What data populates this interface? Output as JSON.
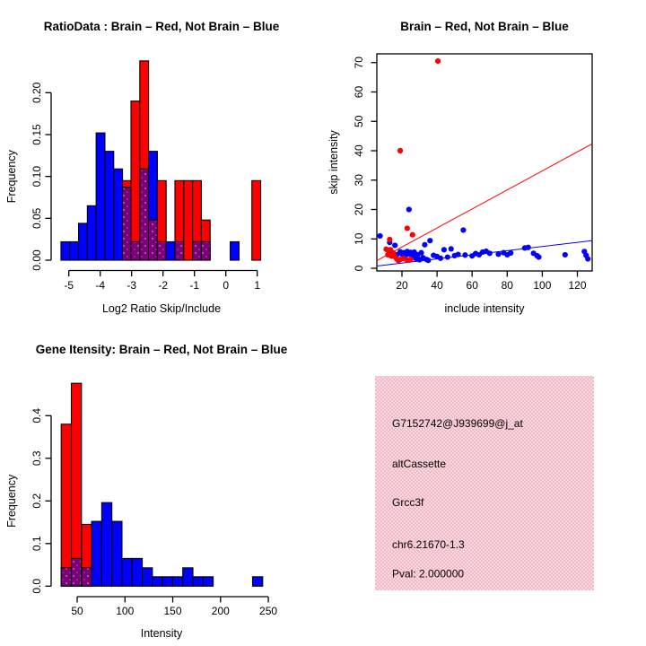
{
  "figure": {
    "background": "#ffffff",
    "colors": {
      "brain_red": "#ff0000",
      "not_brain_blue": "#0000ff",
      "overlap_purple": "#7c007c",
      "overlap_dot_pink": "#db74b8",
      "axis_black": "#000000",
      "pval_red": "#a81e2e",
      "info_bg_pink": "#f6c8d2",
      "info_bg_pink_light": "#fad8de",
      "info_bg_pink_dark": "#f2bac7"
    }
  },
  "chart_data": [
    {
      "id": "ratio-histogram",
      "type": "hist",
      "position": "top-left",
      "title": "RatioData : Brain – Red, Not Brain – Blue",
      "xlabel": "Log2 Ratio Skip/Include",
      "ylabel": "Frequency",
      "x_ticks": [
        -5,
        -4,
        -3,
        -2,
        -1,
        0,
        1
      ],
      "x_tick_labels": [
        "-5",
        "-4",
        "-3",
        "-2",
        "-1",
        "0",
        "1"
      ],
      "y_ticks": [
        0,
        0.05,
        0.1,
        0.15,
        0.2
      ],
      "y_tick_labels": [
        "0.00",
        "0.05",
        "0.10",
        "0.15",
        "0.20"
      ],
      "legend_meaning": {
        "red": "Brain",
        "blue": "Not Brain"
      },
      "bars": [
        {
          "x0": -5.25,
          "x1": -4.97,
          "blue": 0.022,
          "red": 0
        },
        {
          "x0": -4.97,
          "x1": -4.69,
          "blue": 0.022,
          "red": 0
        },
        {
          "x0": -4.69,
          "x1": -4.41,
          "blue": 0.044,
          "red": 0
        },
        {
          "x0": -4.41,
          "x1": -4.13,
          "blue": 0.065,
          "red": 0
        },
        {
          "x0": -4.13,
          "x1": -3.85,
          "blue": 0.152,
          "red": 0
        },
        {
          "x0": -3.85,
          "x1": -3.57,
          "blue": 0.13,
          "red": 0
        },
        {
          "x0": -3.57,
          "x1": -3.29,
          "blue": 0.109,
          "red": 0
        },
        {
          "x0": -3.29,
          "x1": -3.02,
          "blue": 0.087,
          "red": 0.095
        },
        {
          "x0": -3.02,
          "x1": -2.74,
          "blue": 0.022,
          "red": 0.19
        },
        {
          "x0": -2.74,
          "x1": -2.46,
          "blue": 0.109,
          "red": 0.238
        },
        {
          "x0": -2.46,
          "x1": -2.18,
          "blue": 0.13,
          "red": 0.048
        },
        {
          "x0": -2.18,
          "x1": -1.9,
          "blue": 0.022,
          "red": 0.095
        },
        {
          "x0": -1.9,
          "x1": -1.62,
          "blue": 0.022,
          "red": 0
        },
        {
          "x0": -1.62,
          "x1": -1.34,
          "blue": 0.022,
          "red": 0.095
        },
        {
          "x0": -1.34,
          "x1": -1.06,
          "blue": 0,
          "red": 0.095
        },
        {
          "x0": -1.06,
          "x1": -0.78,
          "blue": 0.022,
          "red": 0.095
        },
        {
          "x0": -0.78,
          "x1": -0.5,
          "blue": 0.022,
          "red": 0.048
        },
        {
          "x0": 0.14,
          "x1": 0.42,
          "blue": 0.022,
          "red": 0
        },
        {
          "x0": 0.83,
          "x1": 1.11,
          "blue": 0,
          "red": 0.095
        }
      ]
    },
    {
      "id": "intensity-scatter",
      "type": "scatter",
      "position": "top-right",
      "title": "Brain – Red, Not Brain – Blue",
      "xlabel": "include intensity",
      "ylabel": "skip intensity",
      "x_ticks": [
        20,
        40,
        60,
        80,
        100,
        120
      ],
      "y_ticks": [
        0,
        10,
        20,
        30,
        40,
        50,
        60,
        70
      ],
      "xlim": [
        5.7,
        128.3
      ],
      "ylim": [
        -0.9,
        73
      ],
      "red_points": [
        [
          40.5,
          70.5
        ],
        [
          19,
          40
        ],
        [
          23,
          13.6
        ],
        [
          26,
          11.4
        ],
        [
          13,
          9.8
        ],
        [
          11,
          6.5
        ],
        [
          12,
          6.2
        ],
        [
          13.5,
          6.3
        ],
        [
          15,
          5.2
        ],
        [
          12,
          4.6
        ],
        [
          14,
          4.1
        ],
        [
          16,
          3.9
        ],
        [
          17,
          3.2
        ],
        [
          19,
          3.0
        ],
        [
          21,
          3.3
        ],
        [
          23,
          2.8
        ],
        [
          25,
          3.0
        ],
        [
          18,
          2.6
        ]
      ],
      "blue_points": [
        [
          7.5,
          11
        ],
        [
          24,
          20
        ],
        [
          55,
          13
        ],
        [
          36,
          9.4
        ],
        [
          33,
          8
        ],
        [
          13,
          8.8
        ],
        [
          16,
          7.8
        ],
        [
          14,
          5.5
        ],
        [
          17,
          4.6
        ],
        [
          19,
          5.6
        ],
        [
          20,
          4.8
        ],
        [
          21,
          5.3
        ],
        [
          22,
          4.5
        ],
        [
          23,
          5.7
        ],
        [
          24,
          4.8
        ],
        [
          25,
          5.4
        ],
        [
          26,
          4.3
        ],
        [
          27,
          5.5
        ],
        [
          28,
          3.3
        ],
        [
          29,
          4.6
        ],
        [
          30,
          2.9
        ],
        [
          31,
          5.3
        ],
        [
          32,
          3.6
        ],
        [
          34,
          3.0
        ],
        [
          35,
          2.7
        ],
        [
          38,
          4.4
        ],
        [
          40,
          4.0
        ],
        [
          42,
          3.4
        ],
        [
          44,
          6.3
        ],
        [
          46,
          3.8
        ],
        [
          48,
          6.6
        ],
        [
          50,
          4.3
        ],
        [
          52,
          4.7
        ],
        [
          56,
          4.5
        ],
        [
          60,
          4.2
        ],
        [
          62,
          5.0
        ],
        [
          64,
          4.6
        ],
        [
          66,
          5.5
        ],
        [
          68,
          5.8
        ],
        [
          70,
          5.1
        ],
        [
          75,
          4.8
        ],
        [
          78,
          5.3
        ],
        [
          80,
          4.6
        ],
        [
          82,
          5.2
        ],
        [
          90,
          6.9
        ],
        [
          92,
          7.1
        ],
        [
          95,
          5.1
        ],
        [
          97,
          4.3
        ],
        [
          98,
          3.8
        ],
        [
          113,
          4.6
        ],
        [
          124,
          5.7
        ],
        [
          125,
          4.4
        ],
        [
          126,
          3.2
        ]
      ],
      "red_line": {
        "x1": 5.7,
        "y1": 2.6,
        "x2": 128.3,
        "y2": 42.3
      },
      "blue_line": {
        "x1": 5.7,
        "y1": 0.75,
        "x2": 128.3,
        "y2": 9.4
      }
    },
    {
      "id": "gene-intensity-histogram",
      "type": "hist",
      "position": "bottom-left",
      "title": "Gene Itensity: Brain – Red, Not Brain – Blue",
      "xlabel": "Intensity",
      "ylabel": "Frequency",
      "x_ticks": [
        50,
        100,
        150,
        200,
        250
      ],
      "x_tick_labels": [
        "50",
        "100",
        "150",
        "200",
        "250"
      ],
      "y_ticks": [
        0,
        0.1,
        0.2,
        0.3,
        0.4
      ],
      "y_tick_labels": [
        "0.0",
        "0.1",
        "0.2",
        "0.3",
        "0.4"
      ],
      "legend_meaning": {
        "red": "Brain",
        "blue": "Not Brain"
      },
      "bars": [
        {
          "x0": 33.3,
          "x1": 43.9,
          "blue": 0.043,
          "red": 0.38
        },
        {
          "x0": 43.9,
          "x1": 54.5,
          "blue": 0.065,
          "red": 0.476
        },
        {
          "x0": 54.5,
          "x1": 65.1,
          "blue": 0.043,
          "red": 0.145
        },
        {
          "x0": 65.1,
          "x1": 75.7,
          "blue": 0.152,
          "red": 0
        },
        {
          "x0": 75.7,
          "x1": 86.3,
          "blue": 0.196,
          "red": 0
        },
        {
          "x0": 86.3,
          "x1": 96.9,
          "blue": 0.152,
          "red": 0
        },
        {
          "x0": 96.9,
          "x1": 107.5,
          "blue": 0.065,
          "red": 0
        },
        {
          "x0": 107.5,
          "x1": 118.1,
          "blue": 0.065,
          "red": 0
        },
        {
          "x0": 118.1,
          "x1": 128.7,
          "blue": 0.043,
          "red": 0
        },
        {
          "x0": 128.7,
          "x1": 139.3,
          "blue": 0.022,
          "red": 0
        },
        {
          "x0": 139.3,
          "x1": 149.9,
          "blue": 0.022,
          "red": 0
        },
        {
          "x0": 149.9,
          "x1": 160.5,
          "blue": 0.022,
          "red": 0
        },
        {
          "x0": 160.5,
          "x1": 171.1,
          "blue": 0.043,
          "red": 0
        },
        {
          "x0": 171.1,
          "x1": 181.7,
          "blue": 0.022,
          "red": 0
        },
        {
          "x0": 181.7,
          "x1": 192.3,
          "blue": 0.022,
          "red": 0
        },
        {
          "x0": 233.5,
          "x1": 244.1,
          "blue": 0.022,
          "red": 0
        }
      ]
    },
    {
      "id": "info-panel",
      "type": "info",
      "position": "bottom-right",
      "lines": [
        {
          "text": "G7152742@J939699@j_at",
          "color": "#000000"
        },
        {
          "text": "altCassette",
          "color": "#000000"
        },
        {
          "text": "Grcc3f",
          "color": "#000000"
        },
        {
          "text": "chr6.21670-1.3",
          "color": "#000000"
        },
        {
          "text": "Pval: 2.000000",
          "color": "#a81e2e"
        }
      ]
    }
  ]
}
